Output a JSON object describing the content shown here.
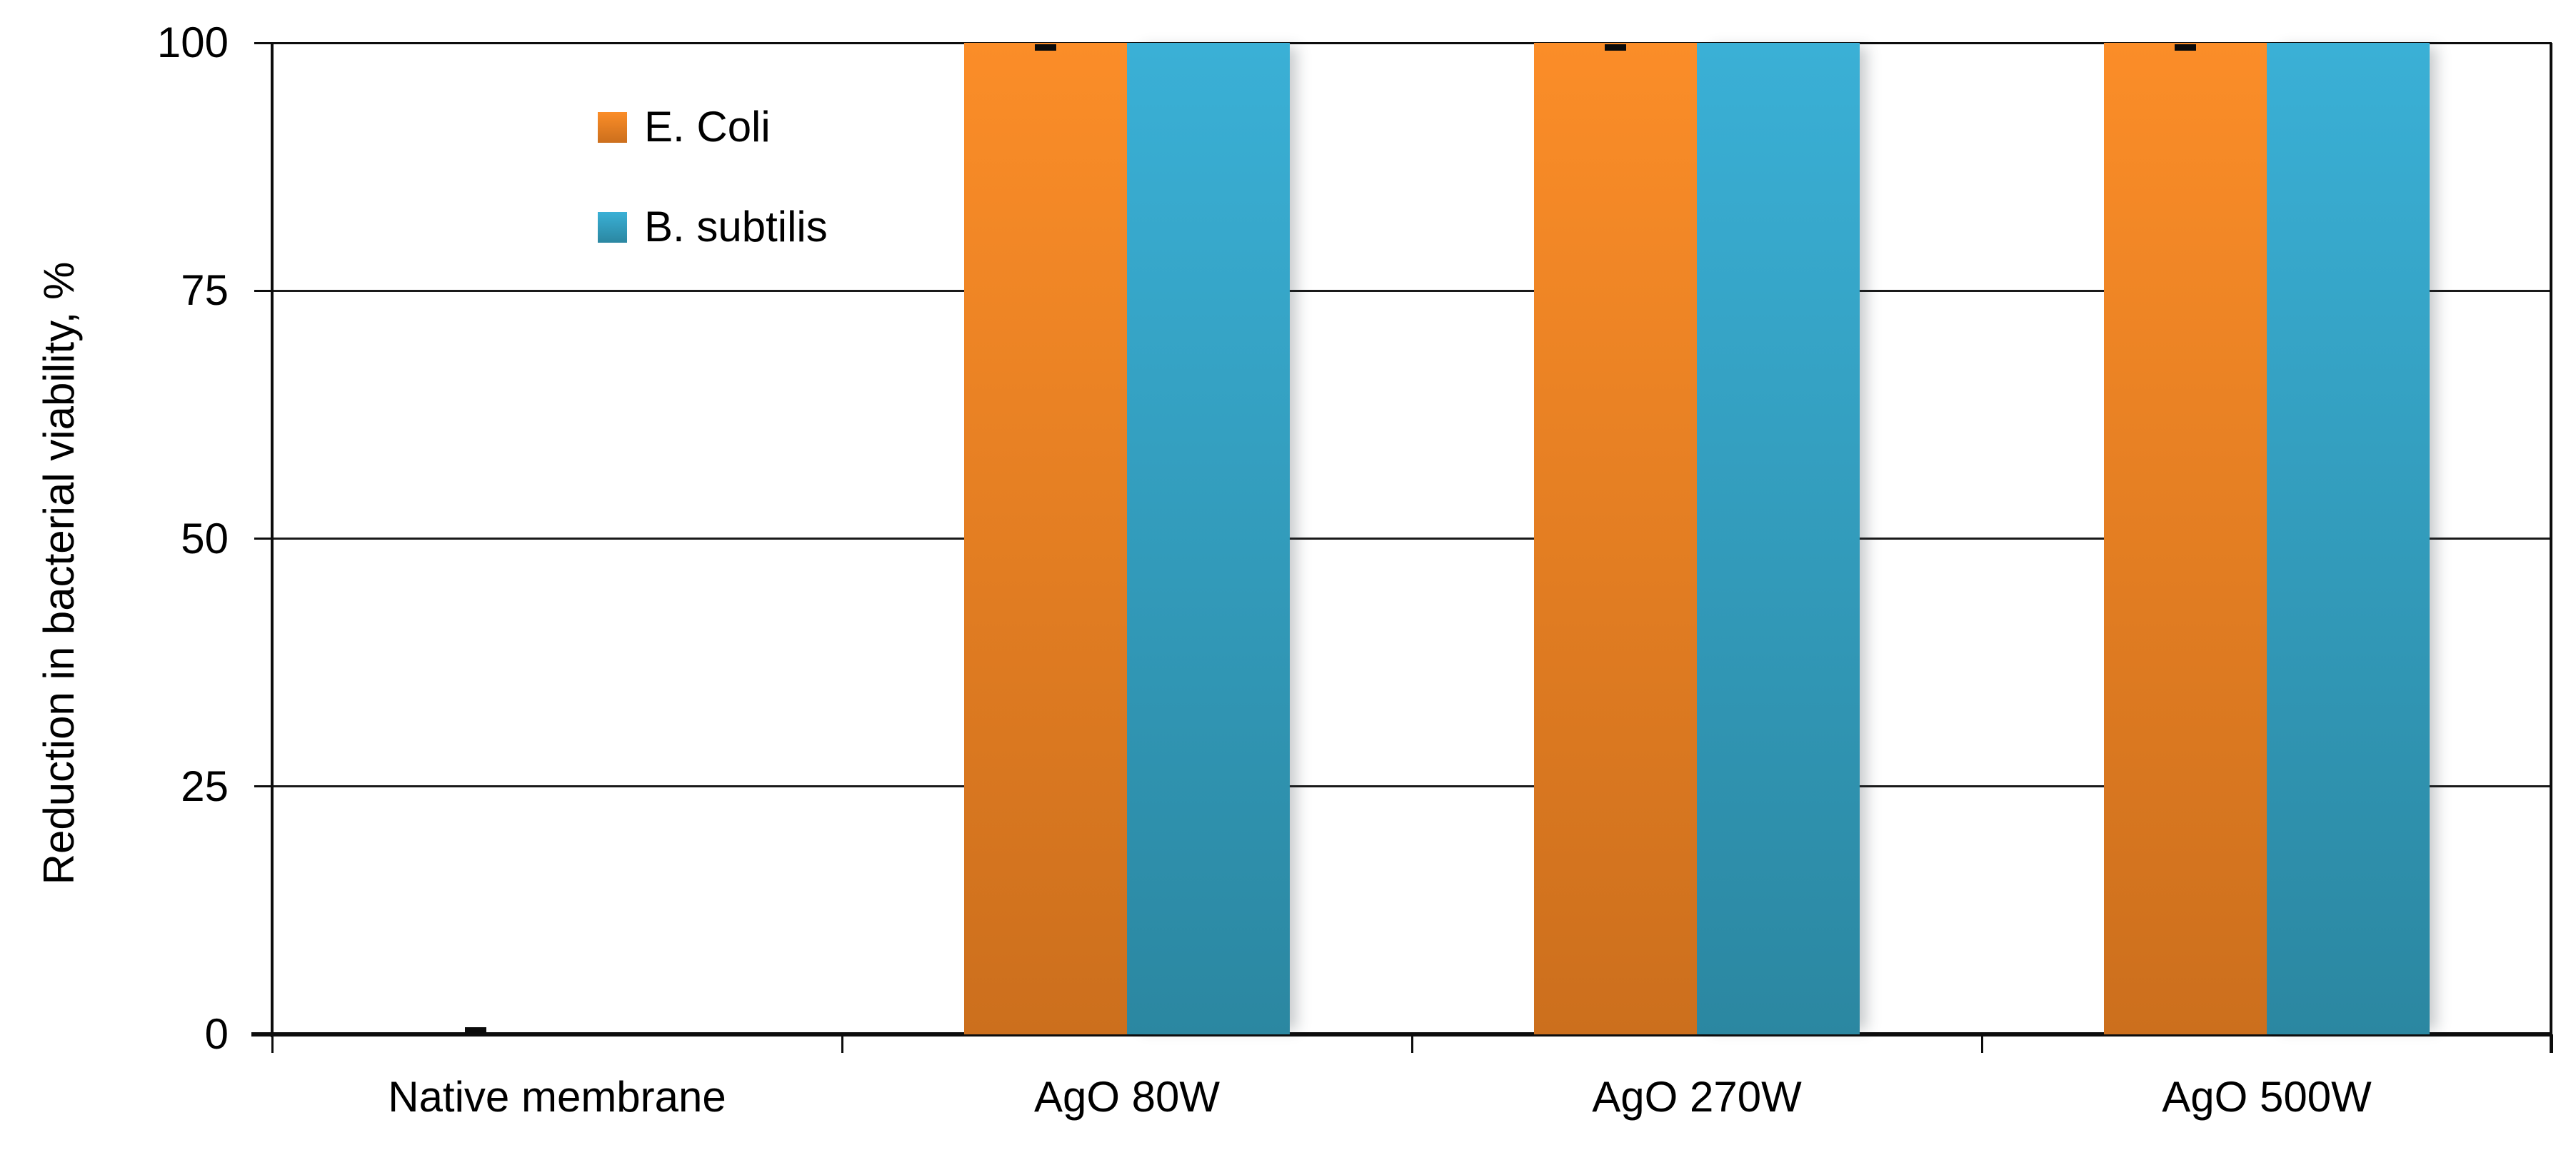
{
  "chart_data": {
    "type": "bar",
    "title": "",
    "categories": [
      "Native membrane",
      "AgO 80W",
      "AgO 270W",
      "AgO 500W"
    ],
    "series": [
      {
        "name": "E. Coli",
        "values": [
          0,
          100,
          100,
          100
        ],
        "color_top": "#FB8D28",
        "color_bottom": "#CC6F1D",
        "error_caps": true
      },
      {
        "name": "B. subtilis",
        "values": [
          0,
          100,
          100,
          100
        ],
        "color_top": "#3AB0D6",
        "color_bottom": "#2B87A1",
        "error_caps": false
      }
    ],
    "xlabel": "",
    "ylabel": "Reduction in bacterial viability, %",
    "ylim": [
      0,
      100
    ],
    "yticks": [
      0,
      25,
      50,
      75,
      100
    ],
    "grid": true,
    "legend_position": "inside-top-left",
    "axis_color": "#0d0d0d",
    "gridline_color": "#1a1a1a",
    "error_cap_color": "#0b0b0b",
    "background": "#ffffff"
  }
}
